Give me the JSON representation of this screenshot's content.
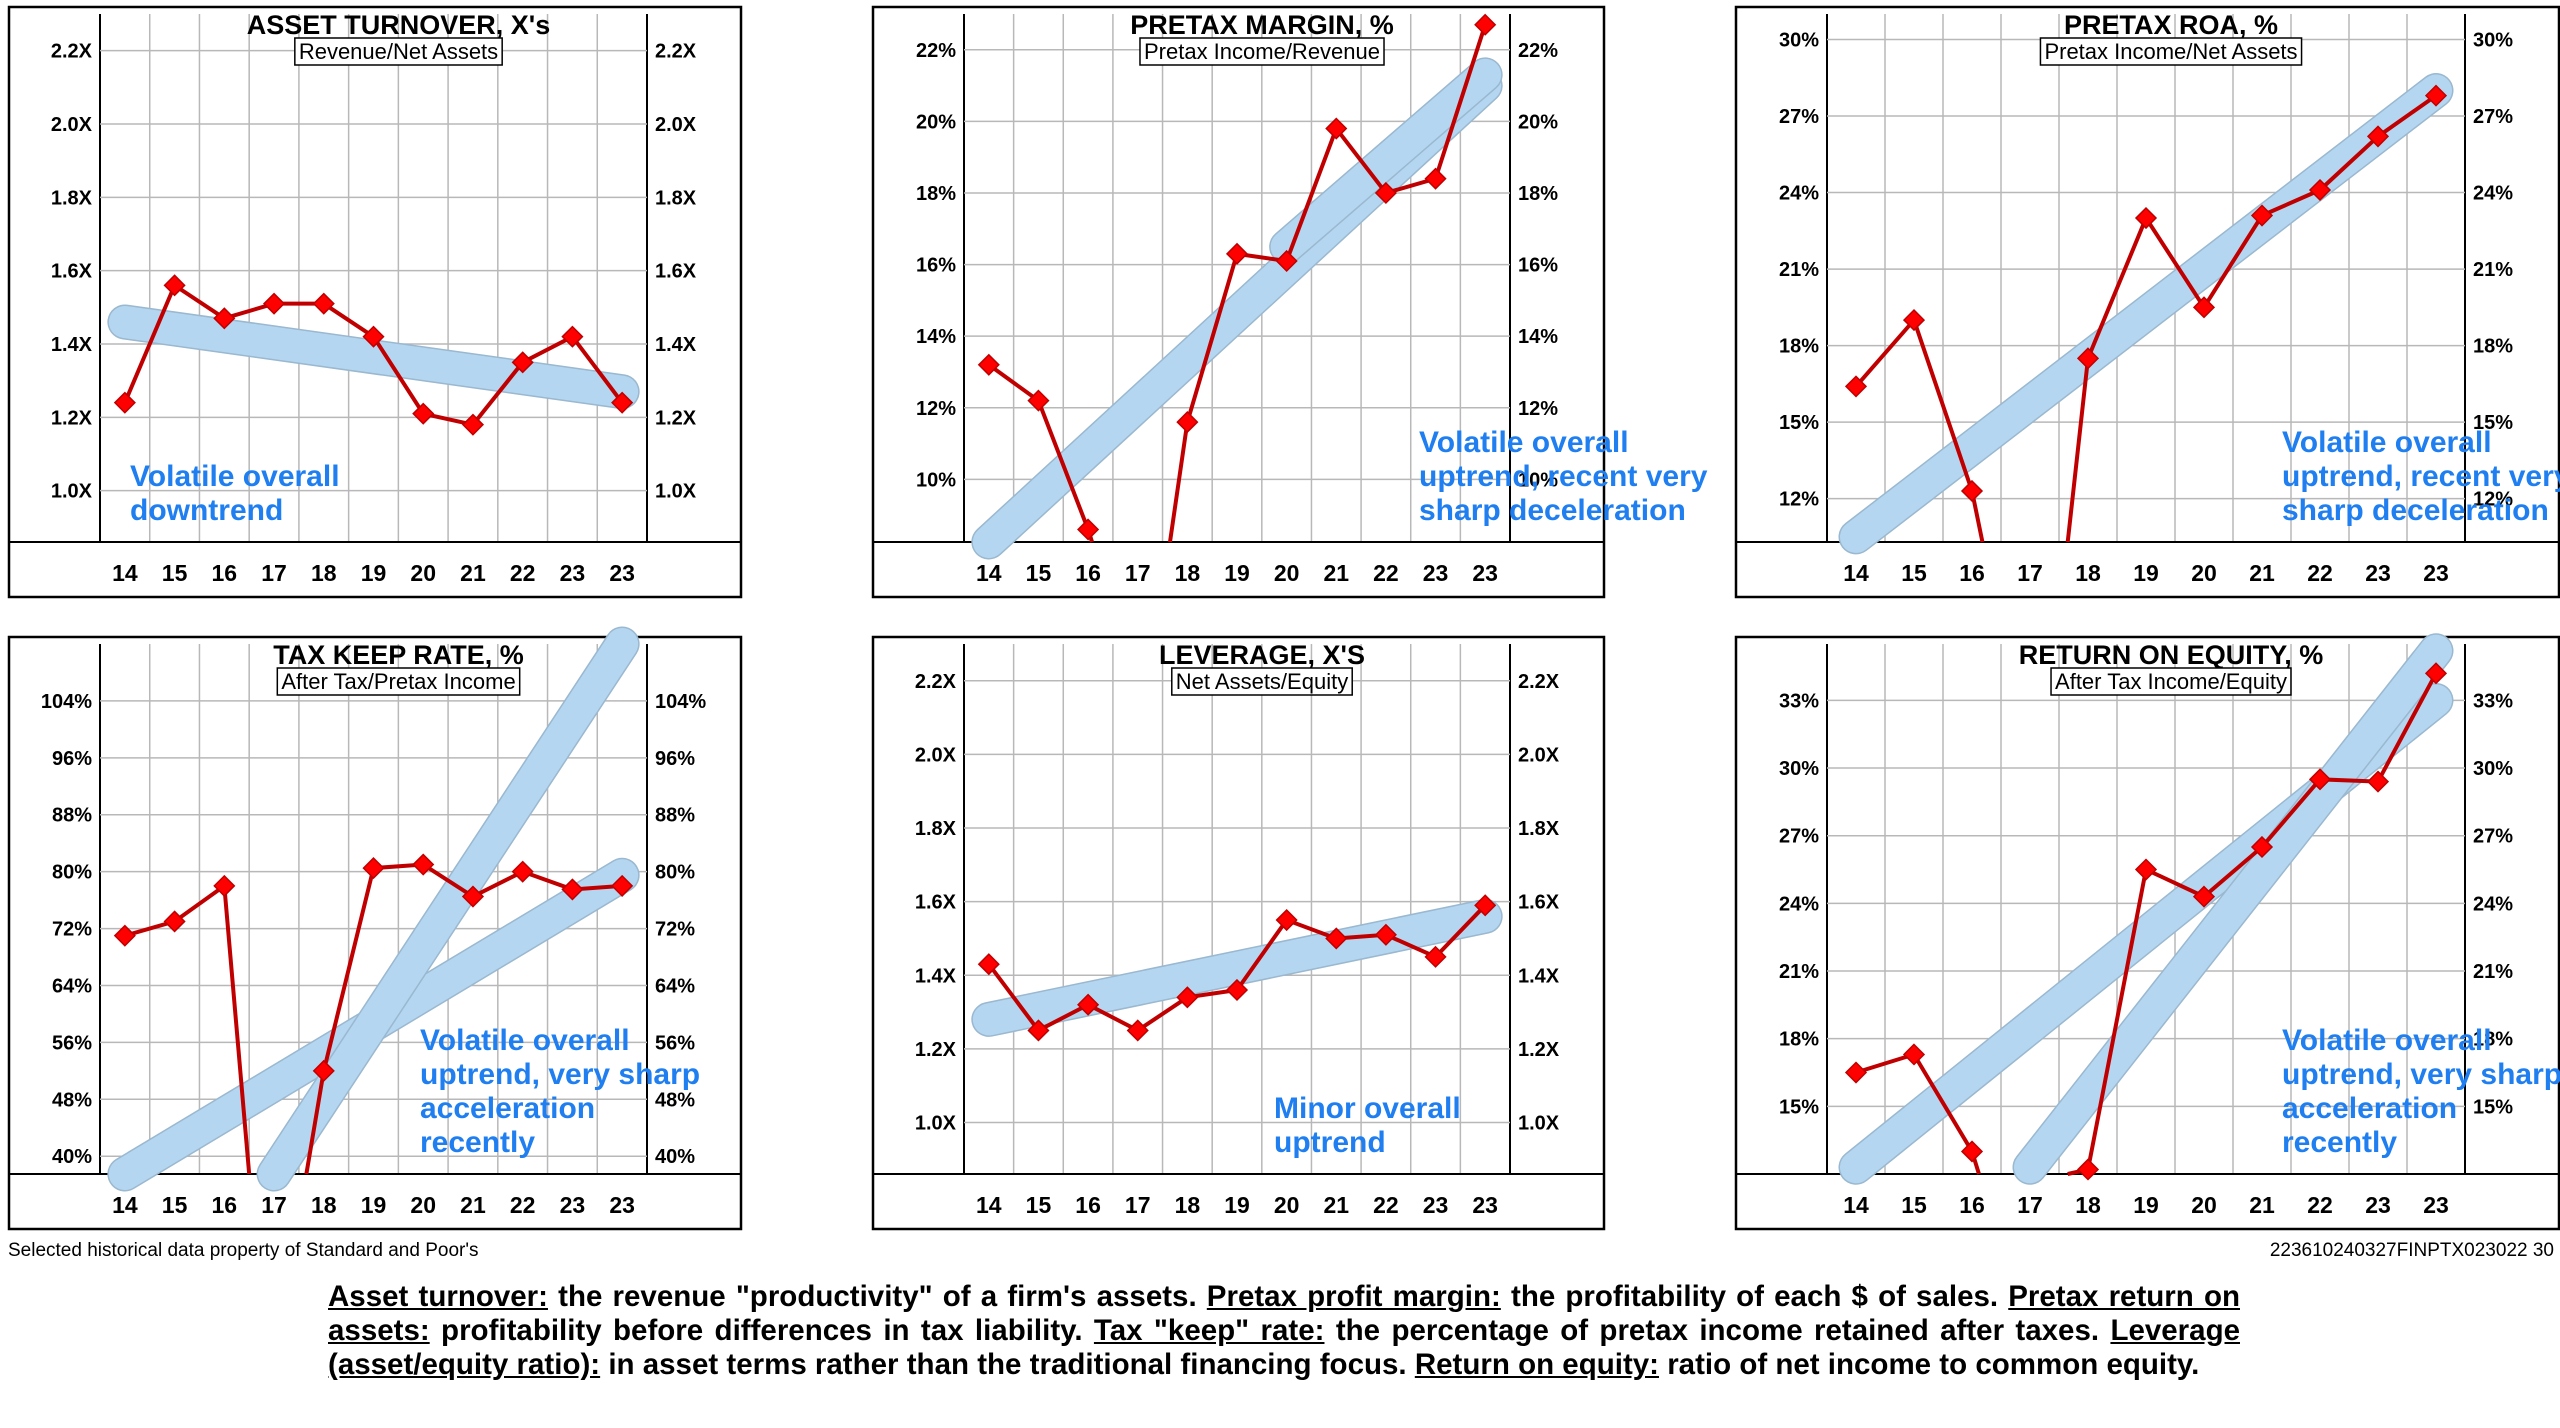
{
  "colors": {
    "series": "#c00000",
    "marker": "#ff0000",
    "trend": "#b4d6f0",
    "comment": "#1f7ff0",
    "grid": "#b8b8b8"
  },
  "footer": {
    "source": "Selected historical data property of Standard and Poor's",
    "code": "223610240327FINPTX023022  30"
  },
  "definitions": [
    {
      "term": "Asset turnover:",
      "text": " the revenue \"productivity\" of a firm's assets. "
    },
    {
      "term": "Pretax profit margin:",
      "text": " the profitability of each $ of sales. "
    },
    {
      "term": "Pretax return on assets:",
      "text": " profitability before differences in tax liability. "
    },
    {
      "term": "Tax \"keep\" rate:",
      "text": " the percentage of pretax income retained after taxes. "
    },
    {
      "term": "Leverage (asset/equity ratio):",
      "text": " in asset terms rather than the traditional financing focus. "
    },
    {
      "term": "Return on equity:",
      "text": " ratio of net income to common equity."
    }
  ],
  "chart_data": [
    {
      "type": "line",
      "title": "ASSET TURNOVER, X's",
      "subtitle": "Revenue/Net Assets",
      "categories": [
        "14",
        "15",
        "16",
        "17",
        "18",
        "19",
        "20",
        "21",
        "22",
        "23",
        "23"
      ],
      "values": [
        1.24,
        1.56,
        1.47,
        1.51,
        1.51,
        1.42,
        1.21,
        1.18,
        1.35,
        1.42,
        1.24
      ],
      "ylim": [
        0.86,
        2.3
      ],
      "yticks": [
        1.0,
        1.2,
        1.4,
        1.6,
        1.8,
        2.0,
        2.2
      ],
      "ytick_labels": [
        "1.0X",
        "1.2X",
        "1.4X",
        "1.6X",
        "1.8X",
        "2.0X",
        "2.2X"
      ],
      "trends": [
        {
          "x": [
            0,
            10
          ],
          "y": [
            1.46,
            1.27
          ]
        }
      ],
      "comment": [
        "Volatile overall",
        "downtrend"
      ]
    },
    {
      "type": "line",
      "title": "PRETAX MARGIN, %",
      "subtitle": "Pretax Income/Revenue",
      "categories": [
        "14",
        "15",
        "16",
        "17",
        "18",
        "19",
        "20",
        "21",
        "22",
        "23",
        "23"
      ],
      "values": [
        13.2,
        12.2,
        8.6,
        null,
        11.6,
        16.3,
        16.1,
        19.8,
        18.0,
        18.4,
        22.7
      ],
      "break": {
        "from_x": 2,
        "to_x": 4,
        "drop_x": [
          2.08,
          3.65
        ]
      },
      "ylim": [
        8.25,
        23.0
      ],
      "yticks": [
        10,
        12,
        14,
        16,
        18,
        20,
        22
      ],
      "ytick_labels": [
        "10%",
        "12%",
        "14%",
        "16%",
        "18%",
        "20%",
        "22%"
      ],
      "trends": [
        {
          "x": [
            0,
            10
          ],
          "y": [
            8.25,
            21.0
          ]
        },
        {
          "x": [
            6,
            10
          ],
          "y": [
            16.5,
            21.3
          ]
        }
      ],
      "comment": [
        "Volatile overall",
        "uptrend, recent very",
        "sharp deceleration"
      ]
    },
    {
      "type": "line",
      "title": "PRETAX ROA, %",
      "subtitle": "Pretax Income/Net Assets",
      "categories": [
        "14",
        "15",
        "16",
        "17",
        "18",
        "19",
        "20",
        "21",
        "22",
        "23",
        "23"
      ],
      "values": [
        16.4,
        19.0,
        12.3,
        null,
        17.5,
        23.0,
        19.5,
        23.1,
        24.1,
        26.2,
        27.8
      ],
      "break": {
        "from_x": 2,
        "to_x": 4,
        "drop_x": [
          2.18,
          3.65
        ]
      },
      "ylim": [
        10.3,
        31.0
      ],
      "yticks": [
        12,
        15,
        18,
        21,
        24,
        27,
        30
      ],
      "ytick_labels": [
        "12%",
        "15%",
        "18%",
        "21%",
        "24%",
        "27%",
        "30%"
      ],
      "trends": [
        {
          "x": [
            0,
            10
          ],
          "y": [
            10.5,
            28.0
          ]
        }
      ],
      "comment": [
        "Volatile overall",
        "uptrend, recent very",
        "sharp deceleration"
      ]
    },
    {
      "type": "line",
      "title": "TAX KEEP RATE, %",
      "subtitle": "After Tax/Pretax Income",
      "categories": [
        "14",
        "15",
        "16",
        "17",
        "18",
        "19",
        "20",
        "21",
        "22",
        "23",
        "23"
      ],
      "values": [
        71,
        73,
        78,
        null,
        52,
        80.5,
        81,
        76.5,
        80,
        77.5,
        78
      ],
      "break": {
        "from_x": 2,
        "to_x": 4,
        "drop_x": [
          2.5,
          3.65
        ]
      },
      "ylim": [
        37.5,
        112
      ],
      "yticks": [
        40,
        48,
        56,
        64,
        72,
        80,
        88,
        96,
        104
      ],
      "ytick_labels": [
        "40%",
        "48%",
        "56%",
        "64%",
        "72%",
        "80%",
        "88%",
        "96%",
        "104%"
      ],
      "trends": [
        {
          "x": [
            0,
            10
          ],
          "y": [
            37.5,
            79.5
          ]
        },
        {
          "x": [
            3,
            10
          ],
          "y": [
            37.5,
            112
          ]
        }
      ],
      "comment": [
        "Volatile overall",
        "uptrend, very sharp",
        "acceleration",
        "recently"
      ]
    },
    {
      "type": "line",
      "title": "LEVERAGE, X'S",
      "subtitle": "Net Assets/Equity",
      "categories": [
        "14",
        "15",
        "16",
        "17",
        "18",
        "19",
        "20",
        "21",
        "22",
        "23",
        "23"
      ],
      "values": [
        1.43,
        1.25,
        1.32,
        1.25,
        1.34,
        1.36,
        1.55,
        1.5,
        1.51,
        1.45,
        1.59
      ],
      "ylim": [
        0.86,
        2.3
      ],
      "yticks": [
        1.0,
        1.2,
        1.4,
        1.6,
        1.8,
        2.0,
        2.2
      ],
      "ytick_labels": [
        "1.0X",
        "1.2X",
        "1.4X",
        "1.6X",
        "1.8X",
        "2.0X",
        "2.2X"
      ],
      "trends": [
        {
          "x": [
            0,
            10
          ],
          "y": [
            1.28,
            1.56
          ]
        }
      ],
      "comment": [
        "Minor overall",
        "uptrend"
      ]
    },
    {
      "type": "line",
      "title": "RETURN ON EQUITY, %",
      "subtitle": "After Tax Income/Equity",
      "categories": [
        "14",
        "15",
        "16",
        "17",
        "18",
        "19",
        "20",
        "21",
        "22",
        "23",
        "23"
      ],
      "values": [
        16.5,
        17.3,
        13.0,
        null,
        12.2,
        25.5,
        24.3,
        26.5,
        29.5,
        29.4,
        34.2
      ],
      "break": {
        "from_x": 2,
        "to_x": 4,
        "drop_x": [
          2.12,
          3.65
        ]
      },
      "ylim": [
        12.0,
        35.5
      ],
      "yticks": [
        15,
        18,
        21,
        24,
        27,
        30,
        33
      ],
      "ytick_labels": [
        "15%",
        "18%",
        "21%",
        "24%",
        "27%",
        "30%",
        "33%"
      ],
      "trends": [
        {
          "x": [
            0,
            10
          ],
          "y": [
            12.3,
            33.0
          ]
        },
        {
          "x": [
            3,
            10
          ],
          "y": [
            12.3,
            35.2
          ]
        }
      ],
      "comment": [
        "Volatile overall",
        "uptrend, very sharp",
        "acceleration",
        "recently"
      ]
    }
  ]
}
